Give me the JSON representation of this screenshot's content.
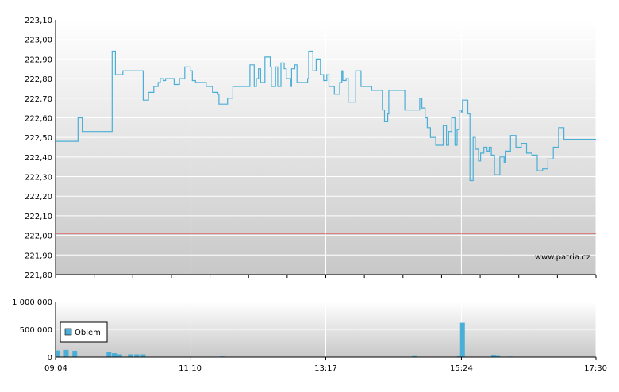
{
  "watermark": "www.patria.cz",
  "legend": {
    "label": "Objem"
  },
  "colors": {
    "price_line": "#4aaed6",
    "reference_line": "#e05050",
    "volume_bar": "#4aaed6",
    "plot_bg_top": "#ffffff",
    "plot_bg_bottom": "#c8c8c8",
    "grid": "#ffffff"
  },
  "chart_data": [
    {
      "type": "line",
      "panel": "price",
      "ylim": [
        221.8,
        223.1
      ],
      "y_ticks": [
        "223,10",
        "223,00",
        "222,90",
        "222,80",
        "222,70",
        "222,60",
        "222,50",
        "222,40",
        "222,30",
        "222,20",
        "222,10",
        "222,00",
        "221,90",
        "221,80"
      ],
      "reference_value": 222.01,
      "grid": true,
      "x_range": [
        "09:04",
        "17:30"
      ],
      "series": [
        {
          "x": [
            "09:04",
            "09:24",
            "09:25",
            "09:28",
            "09:29",
            "09:56",
            "09:57",
            "10:00",
            "10:05",
            "10:07",
            "10:25",
            "10:26",
            "10:30",
            "10:31",
            "10:35",
            "10:36",
            "10:40",
            "10:42",
            "10:45",
            "10:47",
            "10:50",
            "10:55",
            "11:00",
            "11:05",
            "11:10",
            "11:12",
            "11:15",
            "11:18",
            "11:20",
            "11:25",
            "11:30",
            "11:31",
            "11:36",
            "11:37",
            "11:45",
            "11:50",
            "12:05",
            "12:06",
            "12:10",
            "12:12",
            "12:14",
            "12:16",
            "12:20",
            "12:25",
            "12:26",
            "12:30",
            "12:32",
            "12:35",
            "12:38",
            "12:40",
            "12:44",
            "12:45",
            "12:48",
            "12:50",
            "13:00",
            "13:01",
            "13:05",
            "13:08",
            "13:12",
            "13:15",
            "13:18",
            "13:20",
            "13:25",
            "13:30",
            "13:32",
            "13:33",
            "13:36",
            "13:38",
            "13:42",
            "13:45",
            "13:48",
            "13:50",
            "13:55",
            "14:00",
            "14:01",
            "14:10",
            "14:12",
            "14:15",
            "14:16",
            "14:30",
            "14:31",
            "14:45",
            "14:47",
            "14:50",
            "14:52",
            "14:55",
            "15:00",
            "15:05",
            "15:07",
            "15:10",
            "15:12",
            "15:15",
            "15:18",
            "15:20",
            "15:22",
            "15:24",
            "15:25",
            "15:28",
            "15:30",
            "15:32",
            "15:35",
            "15:37",
            "15:40",
            "15:42",
            "15:45",
            "15:48",
            "15:50",
            "15:52",
            "15:55",
            "16:00",
            "16:04",
            "16:05",
            "16:10",
            "16:15",
            "16:20",
            "16:25",
            "16:30",
            "16:35",
            "16:40",
            "16:45",
            "16:50",
            "16:55",
            "17:00",
            "17:05",
            "17:10",
            "17:15",
            "17:20",
            "17:25",
            "17:30"
          ],
          "y": [
            222.48,
            222.48,
            222.6,
            222.6,
            222.53,
            222.53,
            222.94,
            222.82,
            222.82,
            222.84,
            222.84,
            222.69,
            222.69,
            222.73,
            222.73,
            222.76,
            222.78,
            222.8,
            222.79,
            222.8,
            222.8,
            222.77,
            222.8,
            222.86,
            222.84,
            222.79,
            222.78,
            222.78,
            222.78,
            222.76,
            222.76,
            222.73,
            222.72,
            222.67,
            222.7,
            222.76,
            222.76,
            222.87,
            222.76,
            222.8,
            222.85,
            222.78,
            222.91,
            222.86,
            222.76,
            222.86,
            222.76,
            222.88,
            222.85,
            222.8,
            222.76,
            222.85,
            222.87,
            222.78,
            222.8,
            222.94,
            222.84,
            222.9,
            222.82,
            222.79,
            222.82,
            222.76,
            222.72,
            222.78,
            222.84,
            222.79,
            222.8,
            222.68,
            222.68,
            222.84,
            222.84,
            222.76,
            222.76,
            222.74,
            222.74,
            222.64,
            222.58,
            222.62,
            222.74,
            222.74,
            222.64,
            222.7,
            222.65,
            222.6,
            222.55,
            222.5,
            222.46,
            222.46,
            222.56,
            222.46,
            222.53,
            222.6,
            222.46,
            222.54,
            222.64,
            222.63,
            222.69,
            222.69,
            222.62,
            222.28,
            222.5,
            222.44,
            222.38,
            222.42,
            222.45,
            222.43,
            222.45,
            222.41,
            222.31,
            222.4,
            222.37,
            222.43,
            222.51,
            222.45,
            222.47,
            222.42,
            222.41,
            222.33,
            222.34,
            222.39,
            222.45,
            222.55,
            222.49,
            222.49,
            222.49,
            222.49,
            222.49,
            222.49,
            222.49
          ]
        }
      ]
    },
    {
      "type": "bar",
      "panel": "volume",
      "ylim": [
        0,
        1000000
      ],
      "y_ticks": [
        "1 000 000",
        "500 000",
        "0"
      ],
      "x_ticks": [
        "09:04",
        "11:10",
        "13:17",
        "15:24",
        "17:30"
      ],
      "grid": true,
      "legend_position": "top-left",
      "series": [
        {
          "name": "Objem",
          "x": [
            "09:06",
            "09:14",
            "09:22",
            "09:54",
            "09:59",
            "10:04",
            "10:14",
            "10:20",
            "10:26",
            "11:10",
            "11:40",
            "13:30",
            "14:40",
            "15:22",
            "15:25",
            "15:54",
            "15:58",
            "16:10"
          ],
          "y": [
            120000,
            130000,
            115000,
            90000,
            70000,
            50000,
            50000,
            50000,
            50000,
            8000,
            12000,
            6000,
            18000,
            15000,
            620000,
            40000,
            20000,
            10000
          ]
        }
      ]
    }
  ]
}
